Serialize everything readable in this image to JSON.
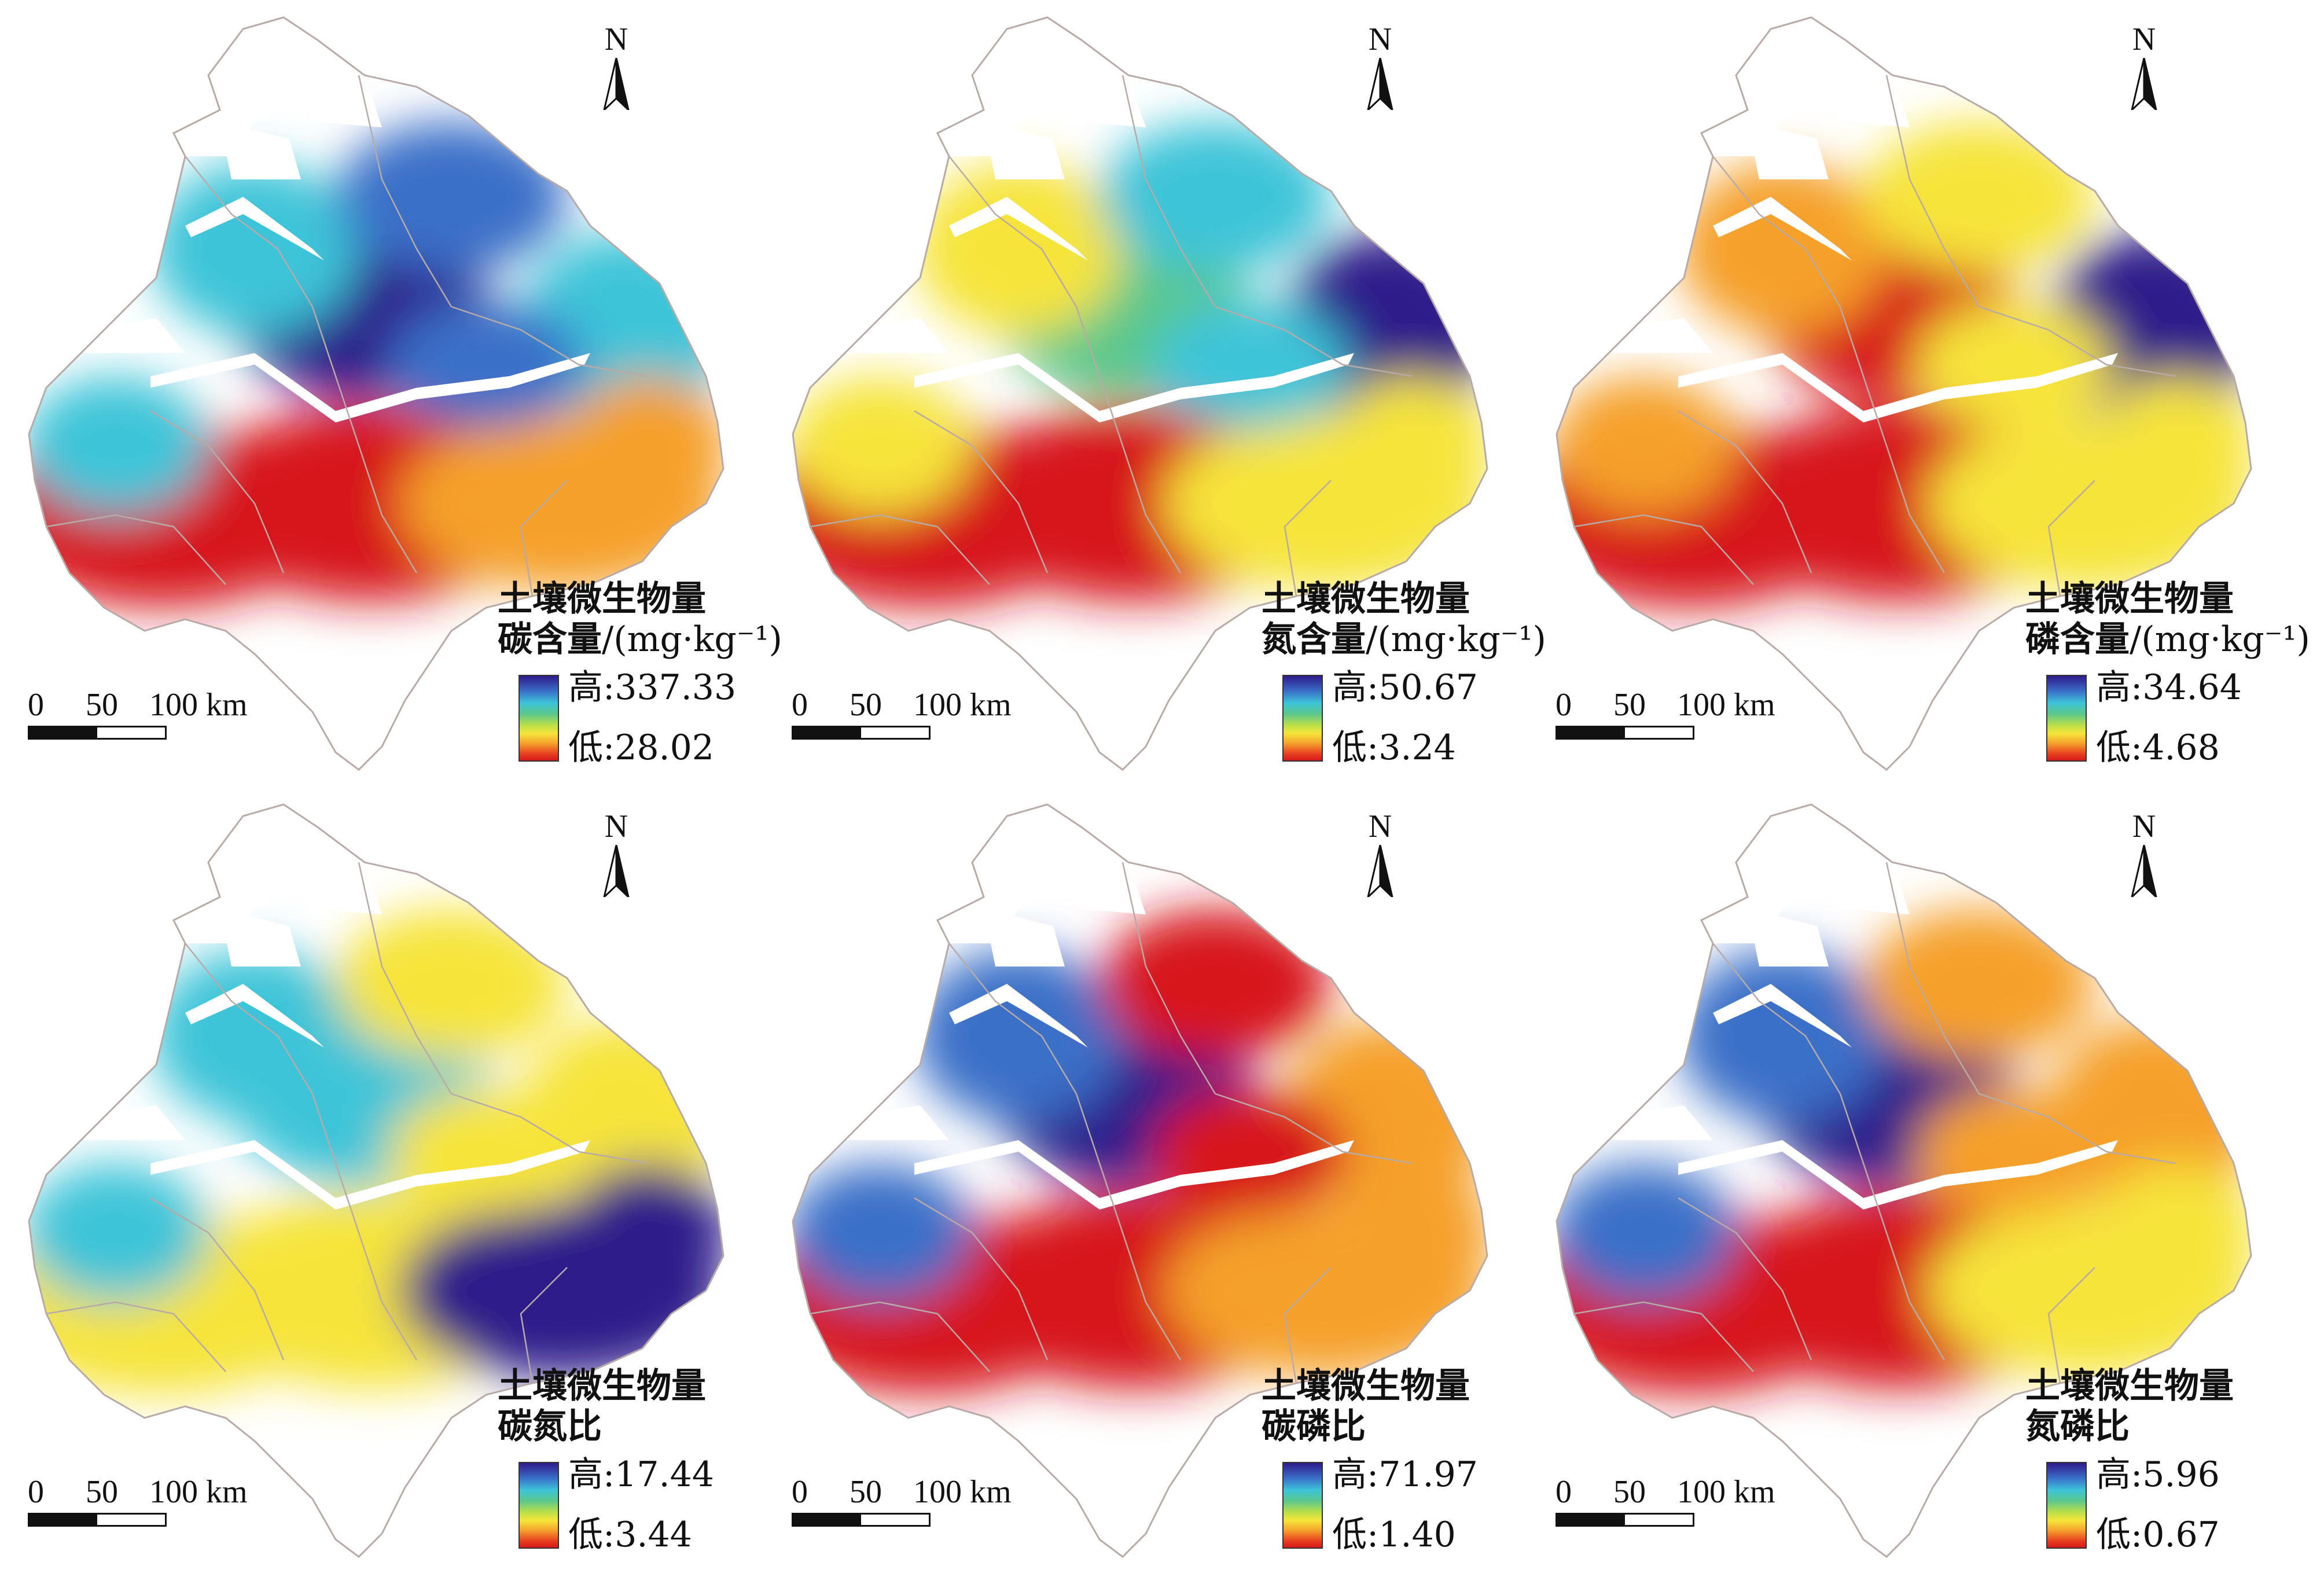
{
  "colors": {
    "high": "#2e1a8a",
    "blue": "#3a6fc8",
    "cyan": "#3cc4d8",
    "green": "#5cc78a",
    "yellow": "#f6e43a",
    "orange": "#f5a02c",
    "red": "#d7191c",
    "boundary": "#b8aaa6"
  },
  "north_label": "N",
  "scale_labels": [
    "0",
    "50",
    "100 km"
  ],
  "panels": [
    {
      "title_line1": "土壤微生物量",
      "title_line2": "碳含量",
      "unit": "/(mg·kg⁻¹)",
      "high": "高:337.33",
      "low": "低:28.02"
    },
    {
      "title_line1": "土壤微生物量",
      "title_line2": "氮含量",
      "unit": "/(mg·kg⁻¹)",
      "high": "高:50.67",
      "low": "低:3.24"
    },
    {
      "title_line1": "土壤微生物量",
      "title_line2": "磷含量",
      "unit": "/(mg·kg⁻¹)",
      "high": "高:34.64",
      "low": "低:4.68"
    },
    {
      "title_line1": "土壤微生物量",
      "title_line2": "碳氮比",
      "unit": "",
      "high": "高:17.44",
      "low": "低:3.44"
    },
    {
      "title_line1": "土壤微生物量",
      "title_line2": "碳磷比",
      "unit": "",
      "high": "高:71.97",
      "low": "低:1.40"
    },
    {
      "title_line1": "土壤微生物量",
      "title_line2": "氮磷比",
      "unit": "",
      "high": "高:5.96",
      "low": "低:0.67"
    }
  ]
}
